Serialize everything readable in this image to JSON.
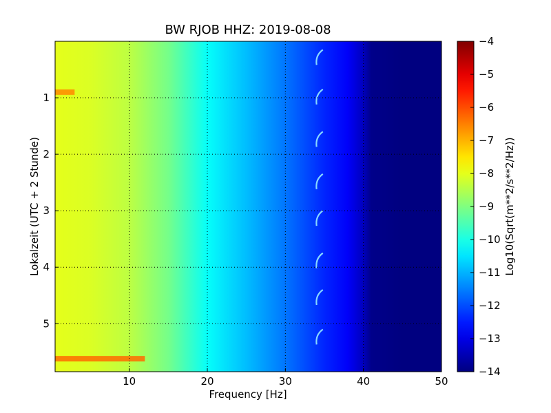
{
  "chart_data": {
    "type": "heatmap",
    "title": "BW RJOB HHZ: 2019-08-08",
    "xlabel": "Frequency [Hz]",
    "ylabel": "Lokalzeit (UTC + 2 Stunde)",
    "xlim": [
      0.5,
      50
    ],
    "ylim": [
      0,
      5.85
    ],
    "y_inverted": true,
    "grid": true,
    "x_ticks": [
      {
        "value": 10,
        "label": "10"
      },
      {
        "value": 20,
        "label": "20"
      },
      {
        "value": 30,
        "label": "30"
      },
      {
        "value": 40,
        "label": "40"
      },
      {
        "value": 50,
        "label": "50"
      }
    ],
    "y_ticks": [
      {
        "value": 1,
        "label": "1"
      },
      {
        "value": 2,
        "label": "2"
      },
      {
        "value": 3,
        "label": "3"
      },
      {
        "value": 4,
        "label": "4"
      },
      {
        "value": 5,
        "label": "5"
      }
    ],
    "colorbar": {
      "label": "Log10(Sqrt(m**2/s**2/Hz))",
      "range": [
        -14,
        -4
      ],
      "colormap": "jet",
      "ticks": [
        {
          "value": -4,
          "label": "−4"
        },
        {
          "value": -5,
          "label": "−5"
        },
        {
          "value": -6,
          "label": "−6"
        },
        {
          "value": -7,
          "label": "−7"
        },
        {
          "value": -8,
          "label": "−8"
        },
        {
          "value": -9,
          "label": "−9"
        },
        {
          "value": -10,
          "label": "−10"
        },
        {
          "value": -11,
          "label": "−11"
        },
        {
          "value": -12,
          "label": "−12"
        },
        {
          "value": -13,
          "label": "−13"
        },
        {
          "value": -14,
          "label": "−14"
        }
      ]
    },
    "spectrum_profile": {
      "frequency": [
        0.5,
        5,
        10,
        15,
        20,
        25,
        30,
        35,
        38,
        40,
        41,
        45,
        50
      ],
      "level": [
        -8.0,
        -8.1,
        -8.4,
        -9.1,
        -10.2,
        -10.9,
        -11.6,
        -12.4,
        -12.8,
        -13.4,
        -13.9,
        -14,
        -14
      ]
    },
    "anomalies": [
      {
        "time": 0.9,
        "freq_range": [
          0.5,
          3.0
        ],
        "level": -6.6
      },
      {
        "time": 5.62,
        "freq_range": [
          0.5,
          12.0
        ],
        "level": -6.3
      }
    ],
    "periodic_feature": {
      "freq_range": [
        34.0,
        34.8
      ],
      "times": [
        0.15,
        0.85,
        1.6,
        2.35,
        3.0,
        3.75,
        4.4,
        5.1
      ]
    }
  }
}
